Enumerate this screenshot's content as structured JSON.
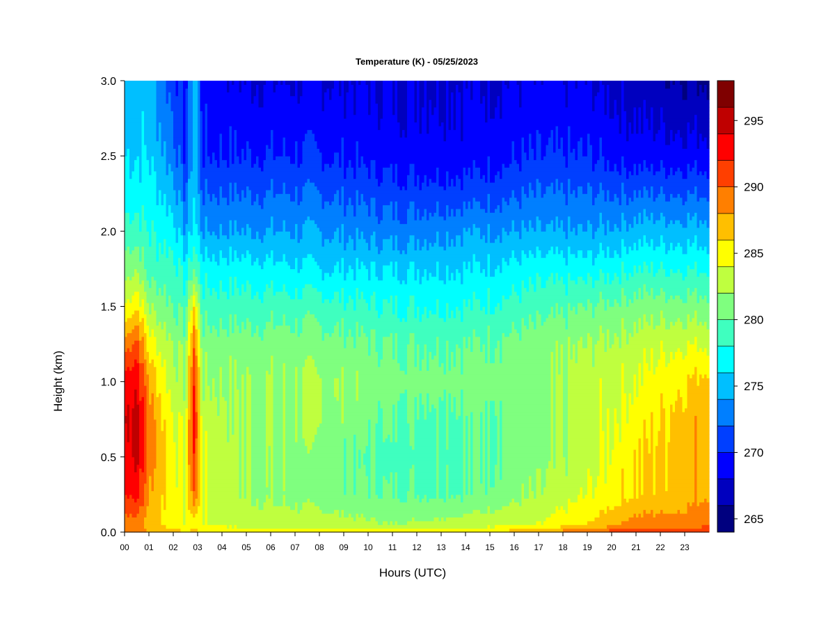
{
  "chart_data": {
    "type": "heatmap",
    "title": "Temperature (K) - 05/25/2023",
    "xlabel": "Hours (UTC)",
    "ylabel": "Height (km)",
    "x_ticks": [
      "00",
      "01",
      "02",
      "03",
      "04",
      "05",
      "06",
      "07",
      "08",
      "09",
      "10",
      "11",
      "12",
      "13",
      "14",
      "15",
      "16",
      "17",
      "18",
      "19",
      "20",
      "21",
      "22",
      "23"
    ],
    "x_range": [
      0,
      24
    ],
    "y_ticks": [
      "0.0",
      "0.5",
      "1.0",
      "1.5",
      "2.0",
      "2.5",
      "3.0"
    ],
    "y_range": [
      0,
      3
    ],
    "colorbar": {
      "range": [
        264,
        298
      ],
      "step": 2,
      "labels": [
        "265",
        "270",
        "275",
        "280",
        "285",
        "290",
        "295"
      ],
      "colors": [
        "#00007F",
        "#0000BF",
        "#0000FF",
        "#003FFF",
        "#007FFF",
        "#00BFFF",
        "#00FFFF",
        "#3FFFBF",
        "#7FFF7F",
        "#BFFF3F",
        "#FFFF00",
        "#FFBF00",
        "#FF7F00",
        "#FF3F00",
        "#FF0000",
        "#BF0000",
        "#7F0000"
      ]
    },
    "profiles": [
      {
        "hour": 0.0,
        "temps": [
          289,
          289,
          292,
          293,
          294,
          293,
          289,
          284,
          281,
          279,
          277,
          276,
          275
        ]
      },
      {
        "hour": 0.5,
        "temps": [
          289,
          289,
          293,
          295,
          295,
          294,
          291,
          286,
          282,
          279,
          277,
          276,
          275
        ]
      },
      {
        "hour": 1.0,
        "temps": [
          288,
          287,
          288,
          289,
          289,
          288,
          285,
          282,
          279,
          278,
          277,
          276,
          275
        ]
      },
      {
        "hour": 2.0,
        "temps": [
          287,
          285,
          285,
          285,
          284,
          283,
          282,
          280,
          279,
          277,
          275,
          273,
          271
        ]
      },
      {
        "hour": 2.5,
        "temps": [
          286,
          284,
          284,
          284,
          283,
          282,
          281,
          279,
          277,
          274,
          272,
          270,
          269
        ]
      },
      {
        "hour": 2.85,
        "temps": [
          287,
          285,
          290,
          292,
          293,
          292,
          290,
          286,
          280,
          277,
          276,
          276,
          276
        ]
      },
      {
        "hour": 3.2,
        "temps": [
          286,
          284,
          284,
          284,
          283,
          282,
          281,
          279,
          277,
          274,
          272,
          270,
          269
        ]
      },
      {
        "hour": 5.0,
        "temps": [
          286,
          283,
          282,
          282,
          282,
          282,
          281,
          279,
          277,
          274,
          272,
          270,
          268
        ]
      },
      {
        "hour": 8.0,
        "temps": [
          285,
          283,
          281,
          281,
          282,
          282,
          281,
          279,
          276,
          274,
          272,
          270,
          268
        ]
      },
      {
        "hour": 11.0,
        "temps": [
          285,
          282,
          280,
          279,
          280,
          281,
          280,
          278,
          276,
          273,
          271,
          269,
          268
        ]
      },
      {
        "hour": 14.0,
        "temps": [
          285,
          283,
          280,
          280,
          280,
          281,
          280,
          278,
          276,
          274,
          271,
          269,
          268
        ]
      },
      {
        "hour": 17.0,
        "temps": [
          288,
          284,
          282,
          281,
          281,
          281,
          281,
          279,
          277,
          274,
          272,
          270,
          268
        ]
      },
      {
        "hour": 19.0,
        "temps": [
          290,
          286,
          284,
          283,
          283,
          283,
          282,
          280,
          277,
          274,
          272,
          270,
          268
        ]
      },
      {
        "hour": 21.0,
        "temps": [
          292,
          289,
          286,
          286,
          285,
          284,
          283,
          281,
          278,
          275,
          272,
          269,
          267
        ]
      },
      {
        "hour": 23.0,
        "temps": [
          291,
          289,
          287,
          287,
          287,
          286,
          284,
          281,
          278,
          275,
          272,
          269,
          266
        ]
      },
      {
        "hour": 24.0,
        "temps": [
          291,
          290,
          288,
          288,
          288,
          287,
          284,
          281,
          278,
          275,
          272,
          269,
          266
        ]
      }
    ],
    "profile_heights_km": [
      0.0,
      0.05,
      0.25,
      0.5,
      0.75,
      1.0,
      1.25,
      1.5,
      1.75,
      2.0,
      2.25,
      2.5,
      3.0
    ]
  }
}
